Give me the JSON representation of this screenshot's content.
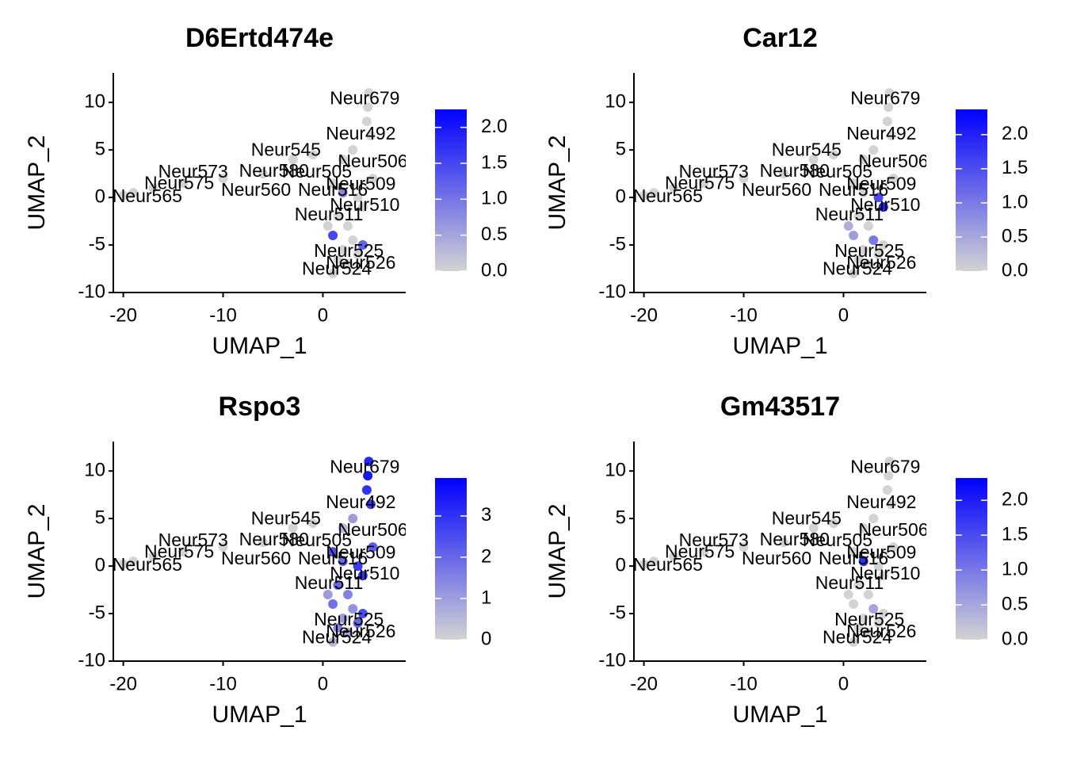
{
  "chart_data": [
    {
      "type": "scatter",
      "title": "D6Ertd474e",
      "xlabel": "UMAP_1",
      "ylabel": "UMAP_2",
      "xlim": [
        -21,
        8.3
      ],
      "ylim": [
        -10,
        13.1
      ],
      "xticks": [
        -20,
        -10,
        0
      ],
      "yticks": [
        -10,
        -5,
        0,
        5,
        10
      ],
      "x": [
        4.6,
        4.5,
        4.4,
        4.8,
        3,
        2,
        -1,
        -3,
        -6,
        -10,
        -14,
        -17,
        -20,
        -19,
        1,
        2,
        3.5,
        4,
        1.5,
        2.5,
        1,
        3,
        2,
        4,
        1.5,
        2.5,
        1,
        3.5,
        0.5,
        5
      ],
      "y": [
        11,
        9.5,
        8,
        6.5,
        5,
        4,
        4.5,
        4,
        2.5,
        2,
        1.5,
        1,
        0.2,
        0.5,
        1.5,
        0.5,
        0,
        -1,
        -2,
        -3,
        -4,
        -4.5,
        -5.5,
        -5,
        -6.5,
        -7,
        -8,
        -6,
        -3,
        2
      ],
      "values": [
        0,
        0,
        0,
        0,
        0,
        0,
        0,
        0,
        0,
        0,
        0,
        0,
        0,
        0,
        0,
        0.8,
        0,
        0,
        0,
        0,
        1.5,
        0,
        0,
        1.2,
        0,
        0,
        0,
        0,
        0,
        0
      ],
      "low_color": "#d3d3d3",
      "high_color": "#0000ff",
      "clim": [
        0,
        2.25
      ],
      "colorbar_ticks": [
        {
          "value": 0,
          "label": "0.0"
        },
        {
          "value": 0.5,
          "label": "0.5"
        },
        {
          "value": 1,
          "label": "1.0"
        },
        {
          "value": 1.5,
          "label": "1.5"
        },
        {
          "value": 2,
          "label": "2.0"
        }
      ],
      "annotations": [
        {
          "text": "Neur679",
          "x": 4.2,
          "y": 10.3
        },
        {
          "text": "Neur492",
          "x": 3.8,
          "y": 6.6
        },
        {
          "text": "Neur545",
          "x": -3.7,
          "y": 4.9
        },
        {
          "text": "Neur506",
          "x": 5,
          "y": 3.7
        },
        {
          "text": "Neur580",
          "x": -4.9,
          "y": 2.7
        },
        {
          "text": "Neur505",
          "x": -0.6,
          "y": 2.6
        },
        {
          "text": "Neur573",
          "x": -13,
          "y": 2.6
        },
        {
          "text": "Neur575",
          "x": -14.4,
          "y": 1.4
        },
        {
          "text": "Neur509",
          "x": 3.8,
          "y": 1.3
        },
        {
          "text": "Neur565",
          "x": -17.6,
          "y": 0
        },
        {
          "text": "Neur560",
          "x": -6.7,
          "y": 0.7
        },
        {
          "text": "Neur516",
          "x": 1,
          "y": 0.7
        },
        {
          "text": "Neur510",
          "x": 4.2,
          "y": -0.9
        },
        {
          "text": "Neur511",
          "x": 0.6,
          "y": -1.9
        },
        {
          "text": "Neur525",
          "x": 2.6,
          "y": -5.75
        },
        {
          "text": "Neur526",
          "x": 3.8,
          "y": -7
        },
        {
          "text": "Neur524",
          "x": 1.4,
          "y": -7.6
        }
      ]
    },
    {
      "type": "scatter",
      "title": "Car12",
      "xlabel": "UMAP_1",
      "ylabel": "UMAP_2",
      "xlim": [
        -21,
        8.3
      ],
      "ylim": [
        -10,
        13.1
      ],
      "xticks": [
        -20,
        -10,
        0
      ],
      "yticks": [
        -10,
        -5,
        0,
        5,
        10
      ],
      "x": [
        4.6,
        4.5,
        4.4,
        4.8,
        3,
        2,
        -1,
        -3,
        -6,
        -10,
        -14,
        -17,
        -20,
        -19,
        1,
        2,
        3.5,
        4,
        1.5,
        2.5,
        1,
        3,
        2,
        4,
        1.5,
        2.5,
        1,
        3.5,
        0.5,
        5
      ],
      "y": [
        11,
        9.5,
        8,
        6.5,
        5,
        4,
        4.5,
        4,
        2.5,
        2,
        1.5,
        1,
        0.2,
        0.5,
        1.5,
        0.5,
        0,
        -1,
        -2,
        -3,
        -4,
        -4.5,
        -5.5,
        -5,
        -6.5,
        -7,
        -8,
        -6,
        -3,
        2
      ],
      "values": [
        0,
        0,
        0,
        0,
        0,
        0,
        0,
        0,
        0,
        0,
        0,
        0,
        0,
        0,
        0,
        0,
        1.5,
        2,
        0,
        0,
        0.6,
        1,
        0,
        0,
        0,
        0,
        0,
        0,
        0.4,
        0
      ],
      "low_color": "#d3d3d3",
      "high_color": "#0000ff",
      "clim": [
        0,
        2.37
      ],
      "colorbar_ticks": [
        {
          "value": 0,
          "label": "0.0"
        },
        {
          "value": 0.5,
          "label": "0.5"
        },
        {
          "value": 1,
          "label": "1.0"
        },
        {
          "value": 1.5,
          "label": "1.5"
        },
        {
          "value": 2,
          "label": "2.0"
        }
      ],
      "annotations": [
        {
          "text": "Neur679",
          "x": 4.2,
          "y": 10.3
        },
        {
          "text": "Neur492",
          "x": 3.8,
          "y": 6.6
        },
        {
          "text": "Neur545",
          "x": -3.7,
          "y": 4.9
        },
        {
          "text": "Neur506",
          "x": 5,
          "y": 3.7
        },
        {
          "text": "Neur580",
          "x": -4.9,
          "y": 2.7
        },
        {
          "text": "Neur505",
          "x": -0.6,
          "y": 2.6
        },
        {
          "text": "Neur573",
          "x": -13,
          "y": 2.6
        },
        {
          "text": "Neur575",
          "x": -14.4,
          "y": 1.4
        },
        {
          "text": "Neur509",
          "x": 3.8,
          "y": 1.3
        },
        {
          "text": "Neur565",
          "x": -17.6,
          "y": 0
        },
        {
          "text": "Neur560",
          "x": -6.7,
          "y": 0.7
        },
        {
          "text": "Neur516",
          "x": 1,
          "y": 0.7
        },
        {
          "text": "Neur510",
          "x": 4.2,
          "y": -0.9
        },
        {
          "text": "Neur511",
          "x": 0.6,
          "y": -1.9
        },
        {
          "text": "Neur525",
          "x": 2.6,
          "y": -5.75
        },
        {
          "text": "Neur526",
          "x": 3.8,
          "y": -7
        },
        {
          "text": "Neur524",
          "x": 1.4,
          "y": -7.6
        }
      ]
    },
    {
      "type": "scatter",
      "title": "Rspo3",
      "xlabel": "UMAP_1",
      "ylabel": "UMAP_2",
      "xlim": [
        -21,
        8.3
      ],
      "ylim": [
        -10,
        13.1
      ],
      "xticks": [
        -20,
        -10,
        0
      ],
      "yticks": [
        -10,
        -5,
        0,
        5,
        10
      ],
      "x": [
        4.6,
        4.5,
        4.4,
        4.8,
        3,
        2,
        -1,
        -3,
        -6,
        -10,
        -14,
        -17,
        -20,
        -19,
        1,
        2,
        3.5,
        4,
        1.5,
        2.5,
        1,
        3,
        2,
        4,
        1.5,
        2.5,
        1,
        3.5,
        0.5,
        5
      ],
      "y": [
        11,
        9.5,
        8,
        6.5,
        5,
        4,
        4.5,
        4,
        2.5,
        2,
        1.5,
        1,
        0.2,
        0.5,
        1.5,
        0.5,
        0,
        -1,
        -2,
        -3,
        -4,
        -4.5,
        -5.5,
        -5,
        -6.5,
        -7,
        -8,
        -6,
        -3,
        2
      ],
      "values": [
        3.2,
        3.5,
        3,
        2.8,
        1,
        0.5,
        0,
        0,
        0,
        0,
        0,
        0,
        0,
        0,
        2.5,
        2,
        2.8,
        3,
        2,
        1.5,
        1.8,
        1.2,
        1,
        2.5,
        1.5,
        0.8,
        0.5,
        2,
        1,
        2.2
      ],
      "low_color": "#d3d3d3",
      "high_color": "#0000ff",
      "clim": [
        0,
        3.92
      ],
      "colorbar_ticks": [
        0,
        1,
        2,
        3
      ],
      "annotations": [
        {
          "text": "Neur679",
          "x": 4.2,
          "y": 10.3
        },
        {
          "text": "Neur492",
          "x": 3.8,
          "y": 6.6
        },
        {
          "text": "Neur545",
          "x": -3.7,
          "y": 4.9
        },
        {
          "text": "Neur506",
          "x": 5,
          "y": 3.7
        },
        {
          "text": "Neur580",
          "x": -4.9,
          "y": 2.7
        },
        {
          "text": "Neur505",
          "x": -0.6,
          "y": 2.6
        },
        {
          "text": "Neur573",
          "x": -13,
          "y": 2.6
        },
        {
          "text": "Neur575",
          "x": -14.4,
          "y": 1.4
        },
        {
          "text": "Neur509",
          "x": 3.8,
          "y": 1.3
        },
        {
          "text": "Neur565",
          "x": -17.6,
          "y": 0
        },
        {
          "text": "Neur560",
          "x": -6.7,
          "y": 0.7
        },
        {
          "text": "Neur516",
          "x": 1,
          "y": 0.7
        },
        {
          "text": "Neur510",
          "x": 4.2,
          "y": -0.9
        },
        {
          "text": "Neur511",
          "x": 0.6,
          "y": -1.9
        },
        {
          "text": "Neur525",
          "x": 2.6,
          "y": -5.75
        },
        {
          "text": "Neur526",
          "x": 3.8,
          "y": -7
        },
        {
          "text": "Neur524",
          "x": 1.4,
          "y": -7.6
        }
      ]
    },
    {
      "type": "scatter",
      "title": "Gm43517",
      "xlabel": "UMAP_1",
      "ylabel": "UMAP_2",
      "xlim": [
        -21,
        8.3
      ],
      "ylim": [
        -10,
        13.1
      ],
      "xticks": [
        -20,
        -10,
        0
      ],
      "yticks": [
        -10,
        -5,
        0,
        5,
        10
      ],
      "x": [
        4.6,
        4.5,
        4.4,
        4.8,
        3,
        2,
        -1,
        -3,
        -6,
        -10,
        -14,
        -17,
        -20,
        -19,
        1,
        2,
        3.5,
        4,
        1.5,
        2.5,
        1,
        3,
        2,
        4,
        1.5,
        2.5,
        1,
        3.5,
        0.5,
        5
      ],
      "y": [
        11,
        9.5,
        8,
        6.5,
        5,
        4,
        4.5,
        4,
        2.5,
        2,
        1.5,
        1,
        0.2,
        0.5,
        1.5,
        0.5,
        0,
        -1,
        -2,
        -3,
        -4,
        -4.5,
        -5.5,
        -5,
        -6.5,
        -7,
        -8,
        -6,
        -3,
        2
      ],
      "values": [
        0,
        0,
        0,
        0,
        0,
        0,
        0,
        0,
        0,
        0,
        0,
        0,
        0,
        0,
        0,
        1.8,
        0,
        0,
        0,
        0,
        0,
        0.5,
        0,
        0,
        0,
        0,
        0,
        0,
        0,
        0
      ],
      "low_color": "#d3d3d3",
      "high_color": "#0000ff",
      "clim": [
        0,
        2.32
      ],
      "colorbar_ticks": [
        {
          "value": 0,
          "label": "0.0"
        },
        {
          "value": 0.5,
          "label": "0.5"
        },
        {
          "value": 1,
          "label": "1.0"
        },
        {
          "value": 1.5,
          "label": "1.5"
        },
        {
          "value": 2,
          "label": "2.0"
        }
      ],
      "annotations": [
        {
          "text": "Neur679",
          "x": 4.2,
          "y": 10.3
        },
        {
          "text": "Neur492",
          "x": 3.8,
          "y": 6.6
        },
        {
          "text": "Neur545",
          "x": -3.7,
          "y": 4.9
        },
        {
          "text": "Neur506",
          "x": 5,
          "y": 3.7
        },
        {
          "text": "Neur580",
          "x": -4.9,
          "y": 2.7
        },
        {
          "text": "Neur505",
          "x": -0.6,
          "y": 2.6
        },
        {
          "text": "Neur573",
          "x": -13,
          "y": 2.6
        },
        {
          "text": "Neur575",
          "x": -14.4,
          "y": 1.4
        },
        {
          "text": "Neur509",
          "x": 3.8,
          "y": 1.3
        },
        {
          "text": "Neur565",
          "x": -17.6,
          "y": 0
        },
        {
          "text": "Neur560",
          "x": -6.7,
          "y": 0.7
        },
        {
          "text": "Neur516",
          "x": 1,
          "y": 0.7
        },
        {
          "text": "Neur510",
          "x": 4.2,
          "y": -0.9
        },
        {
          "text": "Neur511",
          "x": 0.6,
          "y": -1.9
        },
        {
          "text": "Neur525",
          "x": 2.6,
          "y": -5.75
        },
        {
          "text": "Neur526",
          "x": 3.8,
          "y": -7
        },
        {
          "text": "Neur524",
          "x": 1.4,
          "y": -7.6
        }
      ]
    }
  ]
}
